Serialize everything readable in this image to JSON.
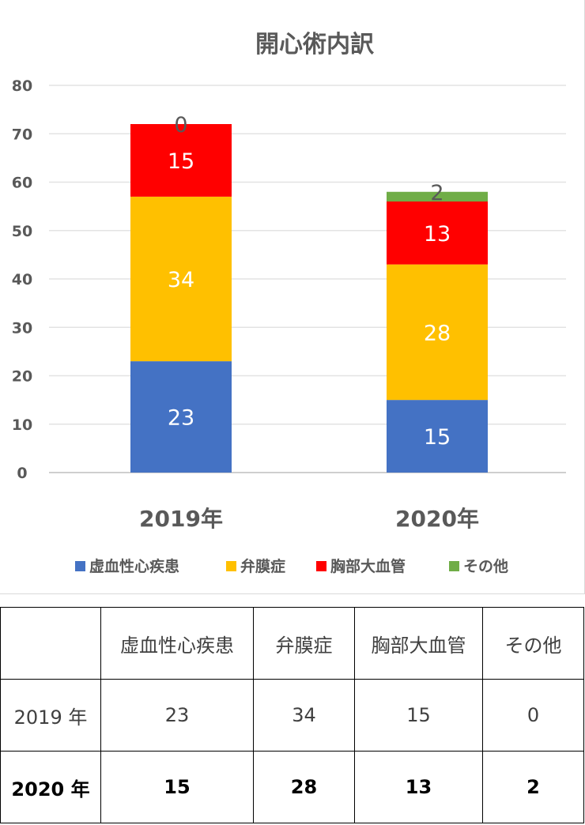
{
  "chart_data": {
    "type": "bar",
    "stacked": true,
    "title": "開心術内訳",
    "categories": [
      "2019年",
      "2020年"
    ],
    "series": [
      {
        "name": "虚血性心疾患",
        "color": "#4472c4",
        "values": [
          23,
          15
        ]
      },
      {
        "name": "弁膜症",
        "color": "#ffc000",
        "values": [
          34,
          28
        ]
      },
      {
        "name": "胸部大血管",
        "color": "#ff0000",
        "values": [
          15,
          13
        ]
      },
      {
        "name": "その他",
        "color": "#70ad47",
        "values": [
          0,
          2
        ]
      }
    ],
    "ylim": [
      0,
      80
    ],
    "yticks": [
      "0",
      "10",
      "20",
      "30",
      "40",
      "50",
      "60",
      "70",
      "80"
    ],
    "grid": true,
    "legend_position": "bottom",
    "data_labels": true
  },
  "table": {
    "headers": [
      "",
      "虚血性心疾患",
      "弁膜症",
      "胸部大血管",
      "その他"
    ],
    "rows": [
      {
        "label": "2019 年",
        "values": [
          "23",
          "34",
          "15",
          "0"
        ]
      },
      {
        "label": "2020 年",
        "values": [
          "15",
          "28",
          "13",
          "2"
        ]
      }
    ]
  }
}
